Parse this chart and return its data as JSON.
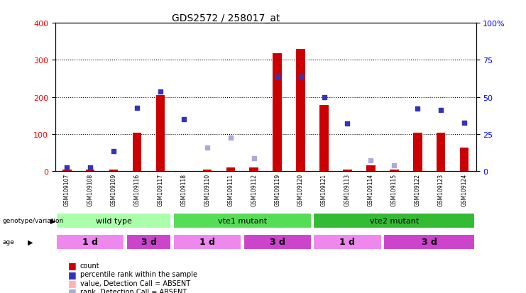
{
  "title": "GDS2572 / 258017_at",
  "samples": [
    "GSM109107",
    "GSM109108",
    "GSM109109",
    "GSM109116",
    "GSM109117",
    "GSM109118",
    "GSM109110",
    "GSM109111",
    "GSM109112",
    "GSM109119",
    "GSM109120",
    "GSM109121",
    "GSM109113",
    "GSM109114",
    "GSM109115",
    "GSM109122",
    "GSM109123",
    "GSM109124"
  ],
  "count_values": [
    5,
    5,
    5,
    103,
    205,
    0,
    5,
    10,
    10,
    318,
    330,
    178,
    5,
    15,
    5,
    103,
    103,
    63
  ],
  "count_absent": [
    false,
    false,
    false,
    false,
    false,
    true,
    false,
    false,
    false,
    false,
    false,
    false,
    false,
    false,
    false,
    false,
    false,
    false
  ],
  "rank_values": [
    10,
    10,
    53,
    170,
    215,
    140,
    63,
    90,
    35,
    255,
    255,
    200,
    128,
    30,
    15,
    168,
    165,
    130
  ],
  "rank_absent": [
    false,
    false,
    false,
    false,
    false,
    false,
    true,
    true,
    true,
    false,
    false,
    false,
    false,
    true,
    true,
    false,
    false,
    false
  ],
  "ylim_left": [
    0,
    400
  ],
  "ylim_right": [
    0,
    100
  ],
  "left_yticks": [
    0,
    100,
    200,
    300,
    400
  ],
  "right_yticks": [
    0,
    25,
    50,
    75,
    100
  ],
  "right_yticklabels": [
    "0",
    "25",
    "50",
    "75",
    "100%"
  ],
  "bar_color_present": "#cc0000",
  "bar_color_absent": "#ffb3b3",
  "rank_color_present": "#3333bb",
  "rank_color_absent": "#aaaadd",
  "genotype_groups": [
    {
      "label": "wild type",
      "start": 0,
      "end": 5,
      "color": "#aaffaa"
    },
    {
      "label": "vte1 mutant",
      "start": 5,
      "end": 11,
      "color": "#55dd55"
    },
    {
      "label": "vte2 mutant",
      "start": 11,
      "end": 18,
      "color": "#33bb33"
    }
  ],
  "age_groups": [
    {
      "label": "1 d",
      "start": 0,
      "end": 3,
      "color": "#ee88ee"
    },
    {
      "label": "3 d",
      "start": 3,
      "end": 5,
      "color": "#cc44cc"
    },
    {
      "label": "1 d",
      "start": 5,
      "end": 8,
      "color": "#ee88ee"
    },
    {
      "label": "3 d",
      "start": 8,
      "end": 11,
      "color": "#cc44cc"
    },
    {
      "label": "1 d",
      "start": 11,
      "end": 14,
      "color": "#ee88ee"
    },
    {
      "label": "3 d",
      "start": 14,
      "end": 18,
      "color": "#cc44cc"
    }
  ],
  "legend_items": [
    {
      "label": "count",
      "color": "#cc0000"
    },
    {
      "label": "percentile rank within the sample",
      "color": "#3333bb"
    },
    {
      "label": "value, Detection Call = ABSENT",
      "color": "#ffb3b3"
    },
    {
      "label": "rank, Detection Call = ABSENT",
      "color": "#aaaadd"
    }
  ],
  "xlabel_bg_color": "#bbbbbb"
}
